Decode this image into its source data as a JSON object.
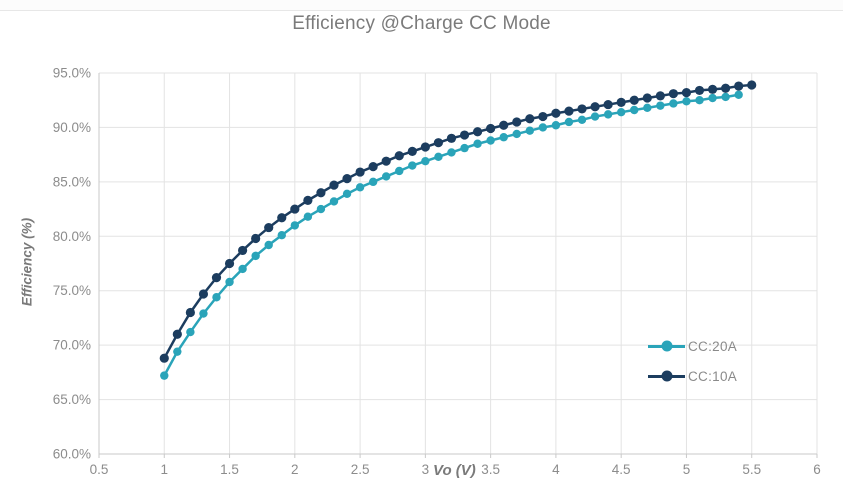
{
  "colors": {
    "title_text": "#7b7b7b",
    "axis_label_text": "#7a7a7a",
    "tick_text": "#8c8c8c",
    "legend_text": "#8a8a8a",
    "gridline": "#e3e3e3",
    "axis_line": "#c9c9c9",
    "series_cc20a": "#2aa4b9",
    "series_cc10a": "#1c3d5f",
    "background": "#ffffff"
  },
  "chart_data": {
    "type": "line",
    "title": "Efficiency @Charge CC Mode",
    "xlabel": "Vo (V)",
    "ylabel": "Efficiency (%)",
    "xlim": [
      0.5,
      6
    ],
    "ylim": [
      60,
      95
    ],
    "grid": true,
    "legend_position": "inside-right-lower",
    "x_ticks": [
      0.5,
      1,
      1.5,
      2,
      2.5,
      3,
      3.5,
      4,
      4.5,
      5,
      5.5,
      6
    ],
    "x_tick_labels": [
      "0.5",
      "1",
      "1.5",
      "2",
      "2.5",
      "3",
      "3.5",
      "4",
      "4.5",
      "5",
      "5.5",
      "6"
    ],
    "y_ticks": [
      60,
      65,
      70,
      75,
      80,
      85,
      90,
      95
    ],
    "y_tick_labels": [
      "60.0%",
      "65.0%",
      "70.0%",
      "75.0%",
      "80.0%",
      "85.0%",
      "90.0%",
      "95.0%"
    ],
    "series": [
      {
        "name": "CC:20A",
        "color": "#2aa4b9",
        "marker_radius": 4.2,
        "x": [
          1.0,
          1.1,
          1.2,
          1.3,
          1.4,
          1.5,
          1.6,
          1.7,
          1.8,
          1.9,
          2.0,
          2.1,
          2.2,
          2.3,
          2.4,
          2.5,
          2.6,
          2.7,
          2.8,
          2.9,
          3.0,
          3.1,
          3.2,
          3.3,
          3.4,
          3.5,
          3.6,
          3.7,
          3.8,
          3.9,
          4.0,
          4.1,
          4.2,
          4.3,
          4.4,
          4.5,
          4.6,
          4.7,
          4.8,
          4.9,
          5.0,
          5.1,
          5.2,
          5.3,
          5.4
        ],
        "values": [
          67.2,
          69.4,
          71.2,
          72.9,
          74.4,
          75.8,
          77.0,
          78.2,
          79.2,
          80.1,
          81.0,
          81.8,
          82.5,
          83.2,
          83.9,
          84.5,
          85.0,
          85.5,
          86.0,
          86.5,
          86.9,
          87.3,
          87.7,
          88.1,
          88.5,
          88.8,
          89.1,
          89.4,
          89.7,
          90.0,
          90.2,
          90.5,
          90.7,
          91.0,
          91.2,
          91.4,
          91.6,
          91.8,
          92.0,
          92.2,
          92.4,
          92.5,
          92.7,
          92.8,
          93.0
        ]
      },
      {
        "name": "CC:10A",
        "color": "#1c3d5f",
        "marker_radius": 4.6,
        "x": [
          1.0,
          1.1,
          1.2,
          1.3,
          1.4,
          1.5,
          1.6,
          1.7,
          1.8,
          1.9,
          2.0,
          2.1,
          2.2,
          2.3,
          2.4,
          2.5,
          2.6,
          2.7,
          2.8,
          2.9,
          3.0,
          3.1,
          3.2,
          3.3,
          3.4,
          3.5,
          3.6,
          3.7,
          3.8,
          3.9,
          4.0,
          4.1,
          4.2,
          4.3,
          4.4,
          4.5,
          4.6,
          4.7,
          4.8,
          4.9,
          5.0,
          5.1,
          5.2,
          5.3,
          5.4,
          5.5
        ],
        "values": [
          68.8,
          71.0,
          73.0,
          74.7,
          76.2,
          77.5,
          78.7,
          79.8,
          80.8,
          81.7,
          82.5,
          83.3,
          84.0,
          84.7,
          85.3,
          85.9,
          86.4,
          86.9,
          87.4,
          87.8,
          88.2,
          88.6,
          89.0,
          89.3,
          89.6,
          89.9,
          90.2,
          90.5,
          90.8,
          91.0,
          91.3,
          91.5,
          91.7,
          91.9,
          92.1,
          92.3,
          92.5,
          92.7,
          92.9,
          93.1,
          93.2,
          93.4,
          93.5,
          93.6,
          93.8,
          93.9
        ]
      }
    ]
  }
}
